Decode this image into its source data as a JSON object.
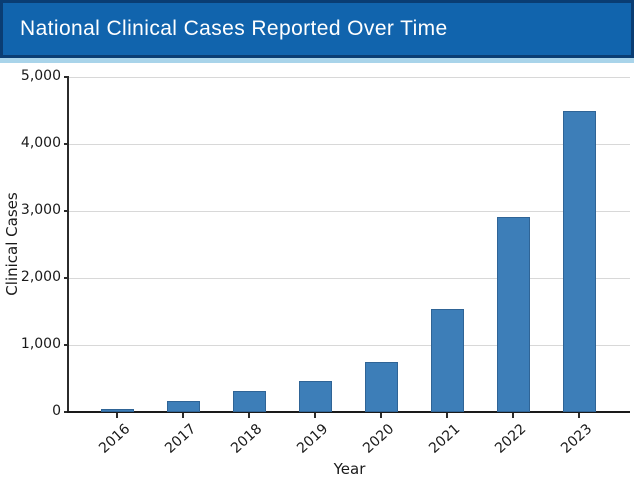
{
  "header": {
    "title": "National Clinical Cases Reported Over Time"
  },
  "chart_data": {
    "type": "bar",
    "title": "National Clinical Cases Reported Over Time",
    "categories": [
      "2016",
      "2017",
      "2018",
      "2019",
      "2020",
      "2021",
      "2022",
      "2023"
    ],
    "values": [
      50,
      160,
      320,
      470,
      750,
      1540,
      2910,
      4500
    ],
    "xlabel": "Year",
    "ylabel": "Clinical Cases",
    "ylim": [
      0,
      5000
    ],
    "yticks": [
      0,
      1000,
      2000,
      3000,
      4000,
      5000
    ],
    "ytick_labels": [
      "0",
      "1,000",
      "2,000",
      "3,000",
      "4,000",
      "5,000"
    ],
    "grid": true,
    "legend": false,
    "x_tick_rotation_deg": 42
  },
  "colors": {
    "banner_bg": "#1164ad",
    "banner_border": "#0a3d73",
    "banner_underline": "#a9d4ea",
    "bar_fill": "#3d7eb8",
    "bar_edge": "#2f6496",
    "gridline": "#d8d8d8",
    "axis": "#2b2b2b",
    "text": "#1a1a1a"
  }
}
